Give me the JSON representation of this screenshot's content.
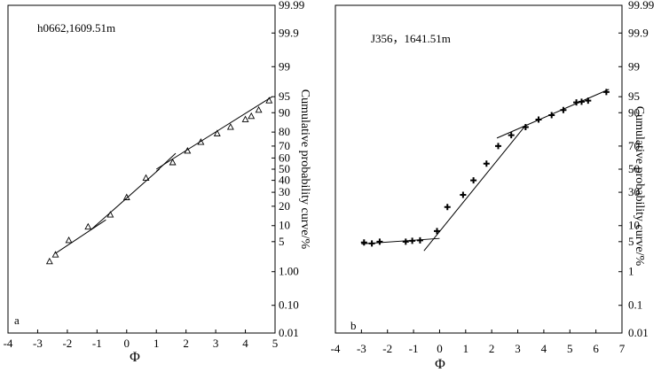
{
  "chart_data": [
    {
      "type": "scatter",
      "panel_label": "a",
      "sample_label": "h0662,1609.51m",
      "xlabel": "Φ",
      "ylabel": "Cumulative probability curve/%",
      "xlim": [
        -4,
        5
      ],
      "xticks": [
        "-4",
        "-3",
        "-2",
        "-1",
        "0",
        "1",
        "2",
        "3",
        "4",
        "5"
      ],
      "yscale": "probability",
      "ylim": [
        0.01,
        99.99
      ],
      "yticks": [
        {
          "v": 0.01,
          "label": "0.01"
        },
        {
          "v": 0.1,
          "label": "0.10"
        },
        {
          "v": 1,
          "label": "1.00"
        },
        {
          "v": 5,
          "label": "5"
        },
        {
          "v": 10,
          "label": "10"
        },
        {
          "v": 20,
          "label": "20"
        },
        {
          "v": 30,
          "label": "30"
        },
        {
          "v": 40,
          "label": "40"
        },
        {
          "v": 50,
          "label": "50"
        },
        {
          "v": 60,
          "label": "60"
        },
        {
          "v": 70,
          "label": "70"
        },
        {
          "v": 80,
          "label": "80"
        },
        {
          "v": 90,
          "label": "90"
        },
        {
          "v": 95,
          "label": "95"
        },
        {
          "v": 99,
          "label": "99"
        },
        {
          "v": 99.9,
          "label": "99.9"
        },
        {
          "v": 99.99,
          "label": "99.99"
        }
      ],
      "marker": "triangle",
      "points": [
        {
          "x": -2.6,
          "y": 1.8
        },
        {
          "x": -2.4,
          "y": 2.6
        },
        {
          "x": -1.95,
          "y": 5.3
        },
        {
          "x": -1.3,
          "y": 9.5
        },
        {
          "x": -0.55,
          "y": 15
        },
        {
          "x": 0.0,
          "y": 26
        },
        {
          "x": 0.65,
          "y": 42
        },
        {
          "x": 1.55,
          "y": 56
        },
        {
          "x": 2.05,
          "y": 66
        },
        {
          "x": 2.5,
          "y": 73
        },
        {
          "x": 3.05,
          "y": 79
        },
        {
          "x": 3.5,
          "y": 83
        },
        {
          "x": 4.0,
          "y": 87
        },
        {
          "x": 4.2,
          "y": 88.5
        },
        {
          "x": 4.45,
          "y": 91
        },
        {
          "x": 4.8,
          "y": 94
        }
      ],
      "fit_lines": [
        {
          "x": [
            -2.4,
            -0.7
          ],
          "y": [
            2.8,
            12.5
          ]
        },
        {
          "x": [
            -1.2,
            1.1
          ],
          "y": [
            8.5,
            50
          ]
        },
        {
          "x": [
            1.0,
            1.65
          ],
          "y": [
            48,
            64
          ]
        },
        {
          "x": [
            1.0,
            4.9
          ],
          "y": [
            50,
            95
          ]
        }
      ]
    },
    {
      "type": "scatter",
      "panel_label": "b",
      "sample_label": "J356，1641.51m",
      "xlabel": "Φ",
      "ylabel": "Cumulative probability curve/%",
      "xlim": [
        -4,
        7
      ],
      "xticks": [
        "-4",
        "-3",
        "-2",
        "-1",
        "0",
        "1",
        "2",
        "3",
        "4",
        "5",
        "6",
        "7"
      ],
      "yscale": "probability",
      "ylim": [
        0.01,
        99.99
      ],
      "yticks": [
        {
          "v": 0.01,
          "label": "0.01"
        },
        {
          "v": 0.1,
          "label": "0.1"
        },
        {
          "v": 1,
          "label": "1"
        },
        {
          "v": 5,
          "label": "5"
        },
        {
          "v": 10,
          "label": "10"
        },
        {
          "v": 30,
          "label": "30"
        },
        {
          "v": 50,
          "label": "50"
        },
        {
          "v": 70,
          "label": "70"
        },
        {
          "v": 90,
          "label": "90"
        },
        {
          "v": 95,
          "label": "95"
        },
        {
          "v": 99,
          "label": "99"
        },
        {
          "v": 99.9,
          "label": "99.9"
        },
        {
          "v": 99.99,
          "label": "99.99"
        }
      ],
      "marker": "plus",
      "points": [
        {
          "x": -2.9,
          "y": 4.8
        },
        {
          "x": -2.6,
          "y": 4.6
        },
        {
          "x": -2.3,
          "y": 5.0
        },
        {
          "x": -1.3,
          "y": 5.0
        },
        {
          "x": -1.05,
          "y": 5.2
        },
        {
          "x": -0.75,
          "y": 5.3
        },
        {
          "x": -0.1,
          "y": 8.0
        },
        {
          "x": 0.3,
          "y": 19.5
        },
        {
          "x": 0.9,
          "y": 28
        },
        {
          "x": 1.3,
          "y": 40
        },
        {
          "x": 1.8,
          "y": 55
        },
        {
          "x": 2.25,
          "y": 70
        },
        {
          "x": 2.75,
          "y": 78
        },
        {
          "x": 3.3,
          "y": 83
        },
        {
          "x": 3.8,
          "y": 87
        },
        {
          "x": 4.3,
          "y": 89
        },
        {
          "x": 4.75,
          "y": 91
        },
        {
          "x": 5.25,
          "y": 93.5
        },
        {
          "x": 5.45,
          "y": 93.7
        },
        {
          "x": 5.7,
          "y": 94
        },
        {
          "x": 6.4,
          "y": 96
        }
      ],
      "fit_lines": [
        {
          "x": [
            -3.0,
            0.0
          ],
          "y": [
            4.5,
            5.8
          ]
        },
        {
          "x": [
            -0.6,
            3.3
          ],
          "y": [
            3.2,
            84
          ]
        },
        {
          "x": [
            2.2,
            6.5
          ],
          "y": [
            76,
            96.5
          ]
        }
      ]
    }
  ]
}
